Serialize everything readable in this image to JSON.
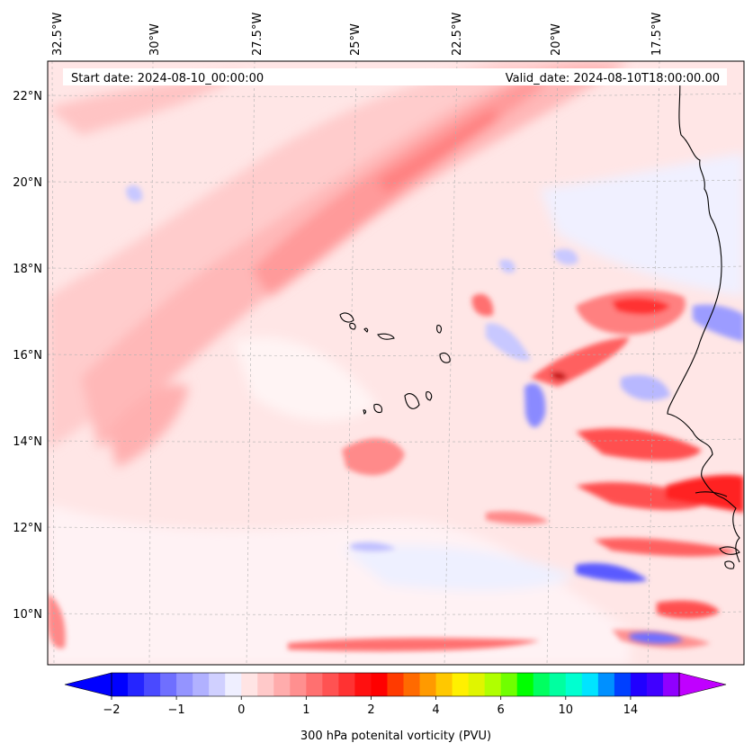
{
  "header": {
    "start_date": "Start date: 2024-08-10_00:00:00",
    "valid_date": "Valid_date: 2024-08-10T18:00:00.00"
  },
  "map": {
    "longitude_labels": [
      "32.5°W",
      "30°W",
      "27.5°W",
      "25°W",
      "22.5°W",
      "20°W",
      "17.5°W"
    ],
    "latitude_labels": [
      "22°N",
      "20°N",
      "18°N",
      "16°N",
      "14°N",
      "12°N",
      "10°N"
    ],
    "field": "300 hPa potential vorticity",
    "background_color": "#ffe4e4",
    "gridlines": true
  },
  "colorbar": {
    "label": "300 hPa potenital vorticity (PVU)",
    "tick_labels": [
      "−2",
      "−1",
      "0",
      "1",
      "2",
      "4",
      "6",
      "10",
      "14"
    ],
    "colors": [
      "#0000ff",
      "#2525ff",
      "#4a4aff",
      "#6f6fff",
      "#9494ff",
      "#b1b1ff",
      "#d0d0ff",
      "#efefff",
      "#ffe4e4",
      "#ffc9c9",
      "#ffacac",
      "#ff8f8f",
      "#ff7070",
      "#ff5252",
      "#ff3232",
      "#ff1010",
      "#ff0000",
      "#ff3a00",
      "#ff6a00",
      "#ff9a00",
      "#ffc800",
      "#fff000",
      "#e0f500",
      "#b0ff00",
      "#70ff00",
      "#00ff00",
      "#00ff60",
      "#00ffa0",
      "#00ffd0",
      "#00e4ff",
      "#0090ff",
      "#0040ff",
      "#2000ff",
      "#4000ff",
      "#9000ff"
    ],
    "extend_min_color": "#0000ff",
    "extend_max_color": "#c000ff"
  }
}
